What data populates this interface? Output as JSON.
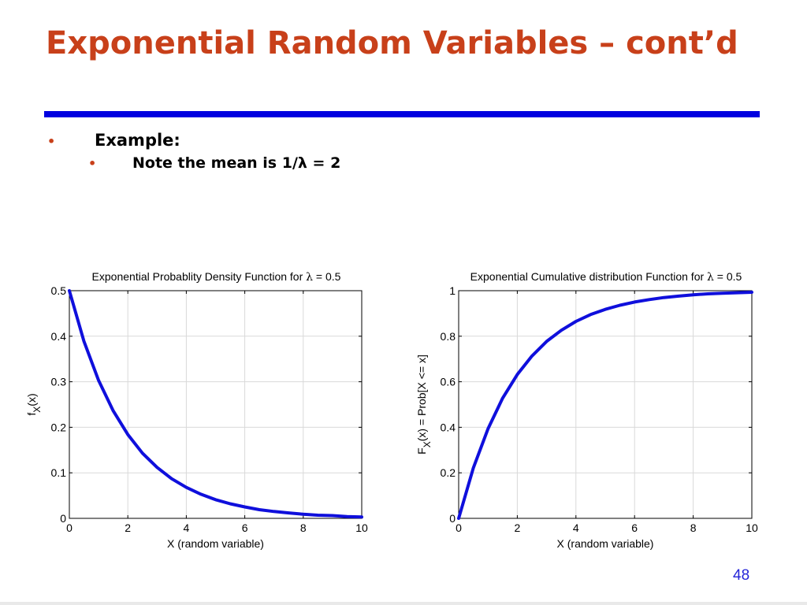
{
  "slide": {
    "title": "Exponential Random Variables – cont’d",
    "bullet1": "Example:",
    "bullet2": "Note the mean is 1/λ = 2",
    "page_number": "48"
  },
  "colors": {
    "title": "#c8401a",
    "rule": "#0000e0",
    "curve": "#0f0fdc",
    "page_number": "#2424d8"
  },
  "chart_data": [
    {
      "type": "line",
      "title_prefix": "Exponential Probablity Density Function for ",
      "title_symbol": "λ",
      "title_suffix": " = 0.5",
      "xlabel": "X (random variable)",
      "ylabel_main": "f",
      "ylabel_sub": "X",
      "ylabel_tail": "(x)",
      "xlim": [
        0,
        10
      ],
      "ylim": [
        0,
        0.5
      ],
      "xticks": [
        0,
        2,
        4,
        6,
        8,
        10
      ],
      "yticks": [
        0,
        0.1,
        0.2,
        0.3,
        0.4,
        0.5
      ],
      "yticklabels": [
        "0",
        "0.1",
        "0.2",
        "0.3",
        "0.4",
        "0.5"
      ],
      "grid": true,
      "series": [
        {
          "x": [
            0,
            0.5,
            1,
            1.5,
            2,
            2.5,
            3,
            3.5,
            4,
            4.5,
            5,
            5.5,
            6,
            6.5,
            7,
            7.5,
            8,
            8.5,
            9,
            9.5,
            10
          ],
          "values": [
            0.5,
            0.389,
            0.303,
            0.236,
            0.184,
            0.143,
            0.112,
            0.087,
            0.068,
            0.053,
            0.041,
            0.032,
            0.025,
            0.019,
            0.015,
            0.012,
            0.009,
            0.007,
            0.006,
            0.004,
            0.003
          ]
        }
      ]
    },
    {
      "type": "line",
      "title_prefix": "Exponential Cumulative distribution Function for ",
      "title_symbol": "λ",
      "title_suffix": " = 0.5",
      "xlabel": "X (random variable)",
      "ylabel_main": "F",
      "ylabel_sub": "X",
      "ylabel_tail": "(x) = Prob[X <= x]",
      "xlim": [
        0,
        10
      ],
      "ylim": [
        0,
        1
      ],
      "xticks": [
        0,
        2,
        4,
        6,
        8,
        10
      ],
      "yticks": [
        0,
        0.2,
        0.4,
        0.6,
        0.8,
        1
      ],
      "yticklabels": [
        "0",
        "0.2",
        "0.4",
        "0.6",
        "0.8",
        "1"
      ],
      "grid": true,
      "series": [
        {
          "x": [
            0,
            0.5,
            1,
            1.5,
            2,
            2.5,
            3,
            3.5,
            4,
            4.5,
            5,
            5.5,
            6,
            6.5,
            7,
            7.5,
            8,
            8.5,
            9,
            9.5,
            10
          ],
          "values": [
            0,
            0.221,
            0.393,
            0.528,
            0.632,
            0.713,
            0.777,
            0.826,
            0.865,
            0.895,
            0.918,
            0.936,
            0.95,
            0.961,
            0.97,
            0.976,
            0.982,
            0.986,
            0.989,
            0.991,
            0.993
          ]
        }
      ]
    }
  ]
}
